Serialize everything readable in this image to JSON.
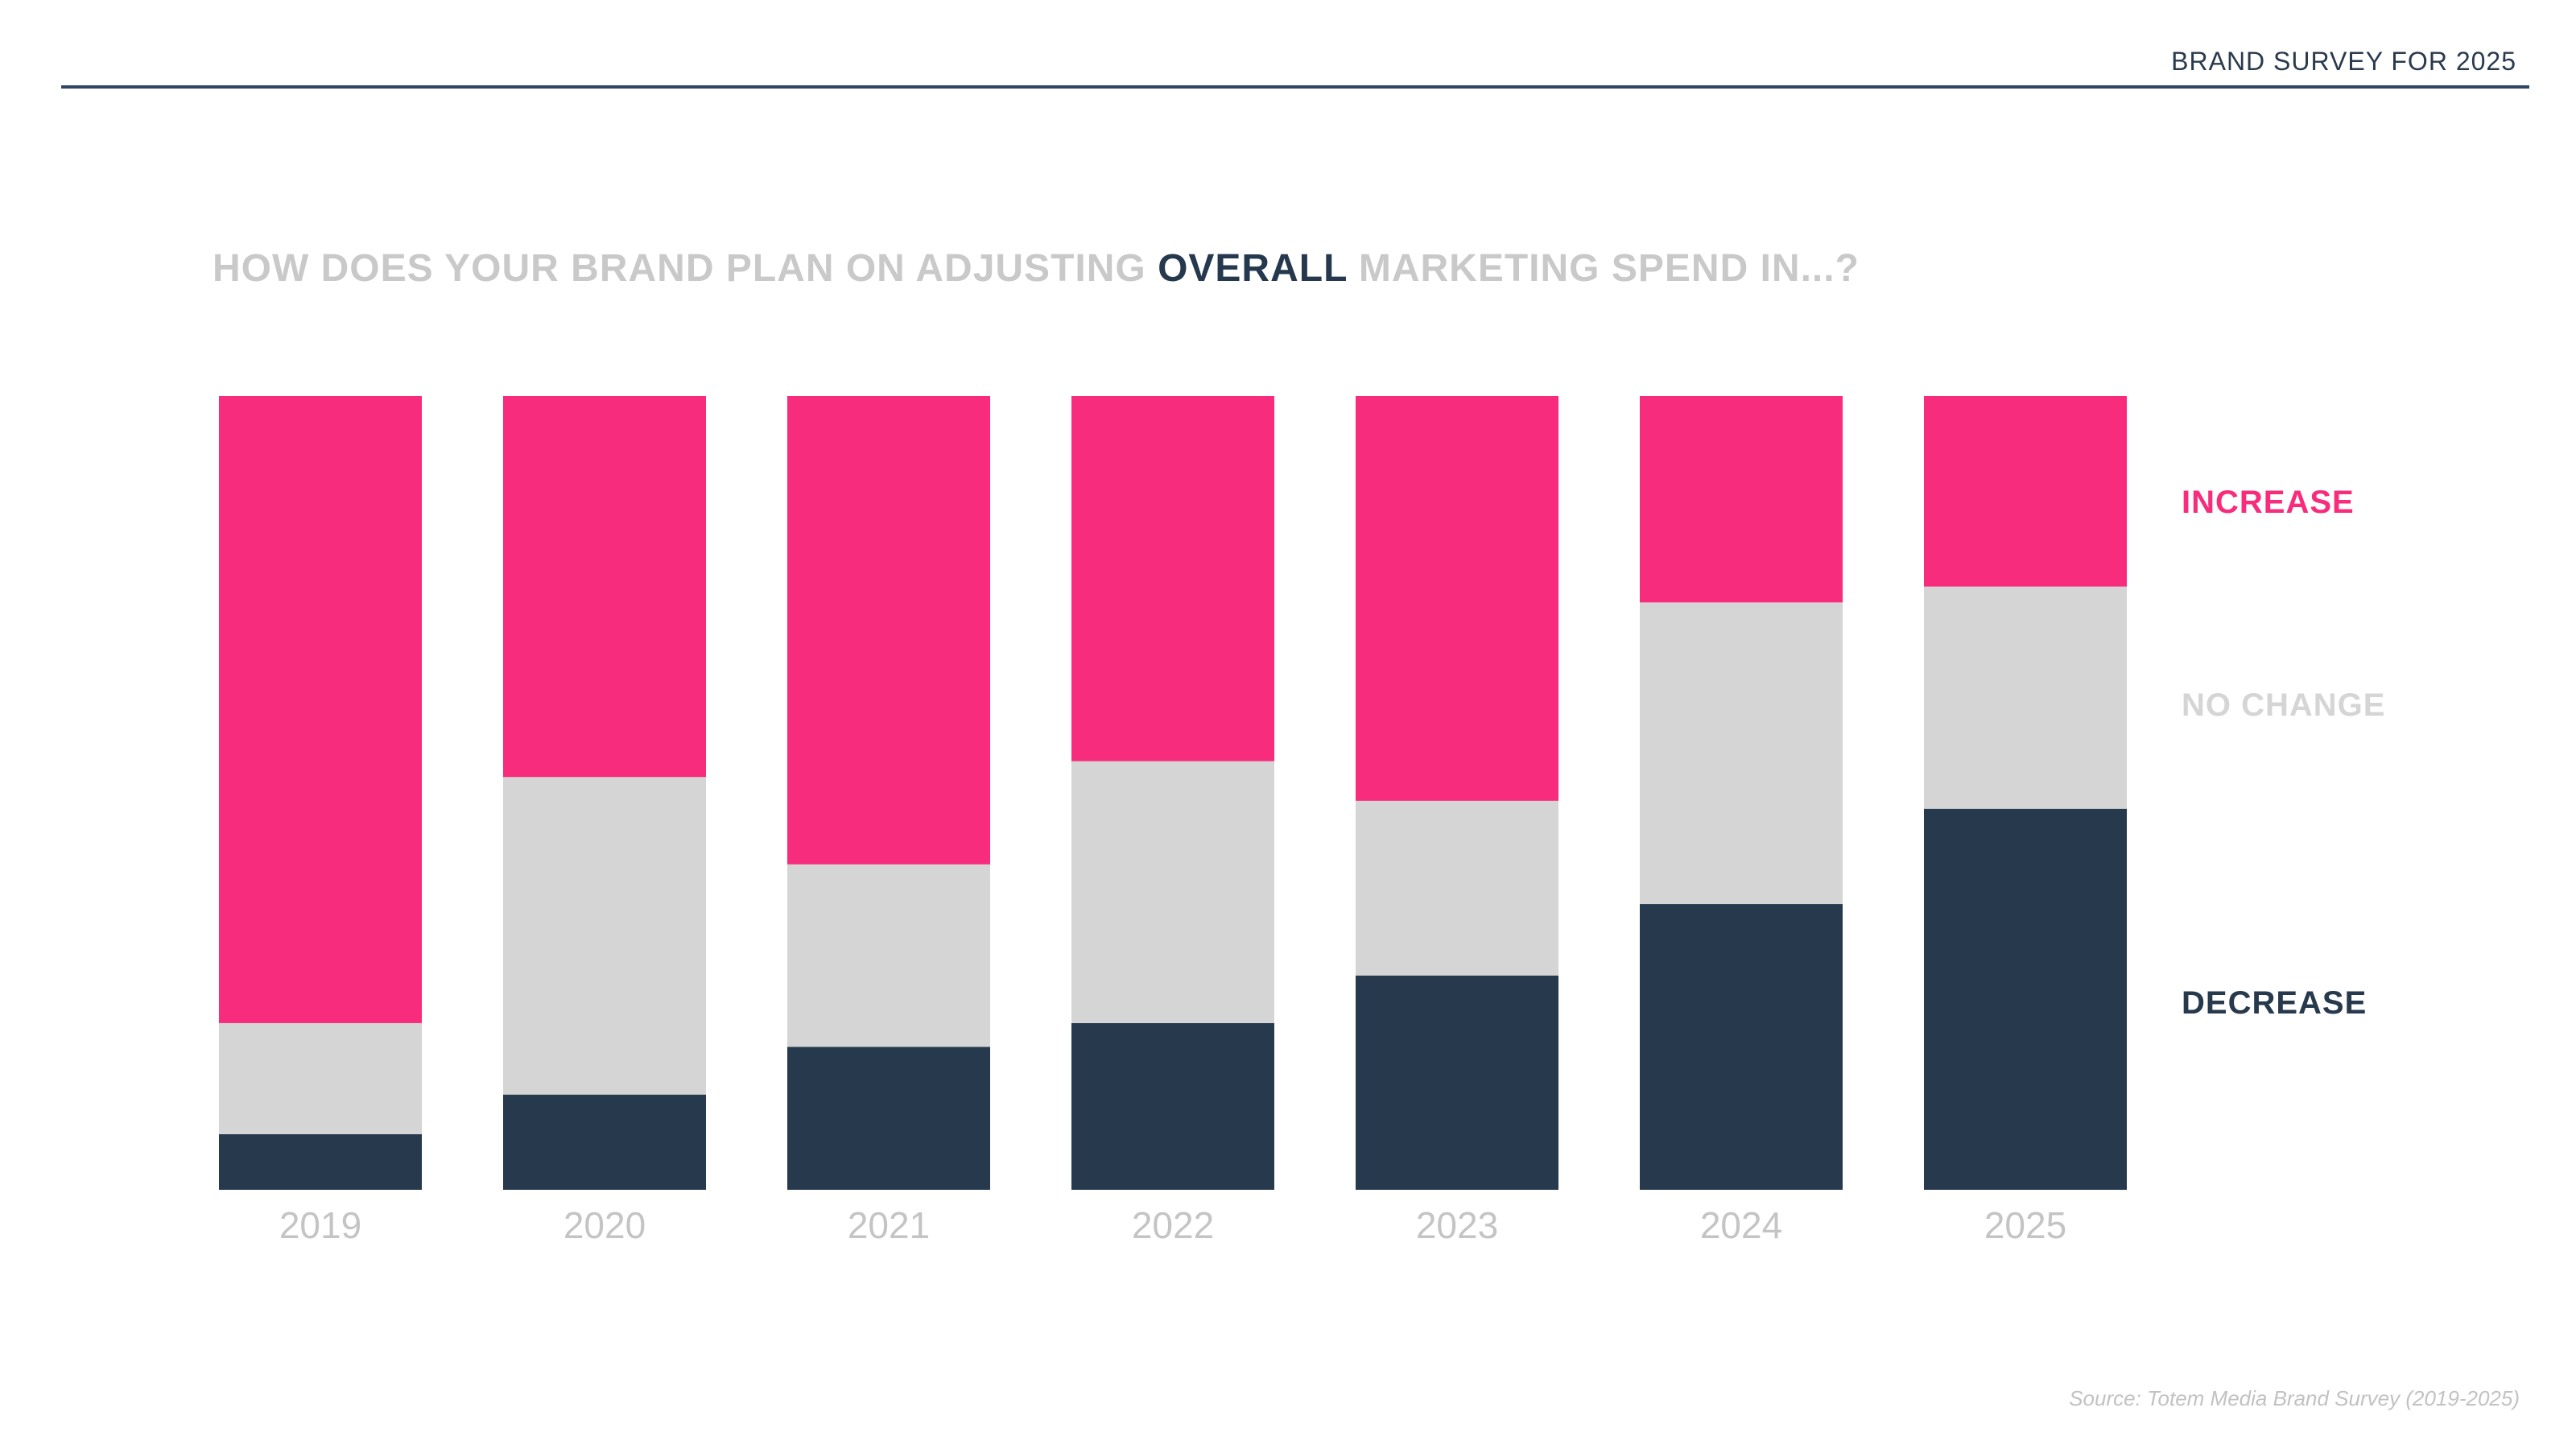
{
  "header": {
    "title": "BRAND SURVEY FOR 2025"
  },
  "question": {
    "prefix": "HOW DOES YOUR BRAND PLAN ON ADJUSTING ",
    "emphasis": "OVERALL",
    "suffix": " MARKETING SPEND IN...?"
  },
  "legend": {
    "increase": "INCREASE",
    "no_change": "NO CHANGE",
    "decrease": "DECREASE"
  },
  "source": "Source: Totem Media Brand Survey (2019-2025)",
  "colors": {
    "increase": "#f72c7c",
    "no_change": "#d5d5d5",
    "decrease": "#26394d",
    "axis_label": "#c4c4c4"
  },
  "chart_data": {
    "type": "bar",
    "stacked": true,
    "categories": [
      "2019",
      "2020",
      "2021",
      "2022",
      "2023",
      "2024",
      "2025"
    ],
    "series": [
      {
        "name": "DECREASE",
        "values": [
          7,
          12,
          18,
          21,
          27,
          36,
          48
        ]
      },
      {
        "name": "NO CHANGE",
        "values": [
          14,
          40,
          23,
          33,
          22,
          38,
          28
        ]
      },
      {
        "name": "INCREASE",
        "values": [
          79,
          48,
          59,
          46,
          51,
          26,
          24
        ]
      }
    ],
    "ylim": [
      0,
      100
    ],
    "grid": false,
    "legend_position": "right"
  }
}
